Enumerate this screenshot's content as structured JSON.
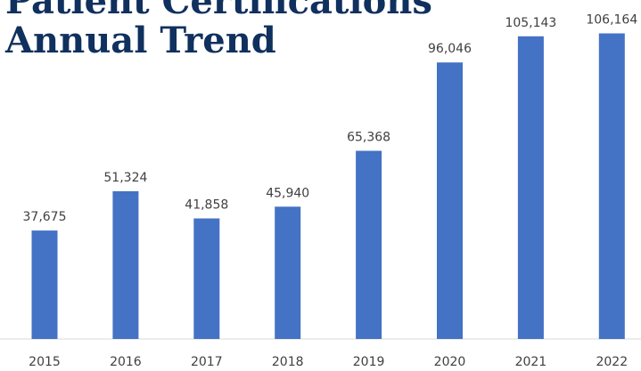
{
  "title": {
    "line1": "Patient Certifications",
    "line2": "Annual Trend"
  },
  "chart_data": {
    "type": "bar",
    "title": "Patient Certifications Annual Trend",
    "categories": [
      "2015",
      "2016",
      "2017",
      "2018",
      "2019",
      "2020",
      "2021",
      "2022"
    ],
    "values": [
      37675,
      51324,
      41858,
      45940,
      65368,
      96046,
      105143,
      106164
    ],
    "data_labels": [
      "37,675",
      "51,324",
      "41,858",
      "45,940",
      "65,368",
      "96,046",
      "105,143",
      "106,164"
    ],
    "xlabel": "",
    "ylabel": "",
    "ylim": [
      0,
      120000
    ],
    "grid": false,
    "legend": "none",
    "colors": {
      "bar": "#4472c4",
      "title": "#10305e",
      "label": "#404040",
      "axis": "#d9d9d9"
    }
  }
}
